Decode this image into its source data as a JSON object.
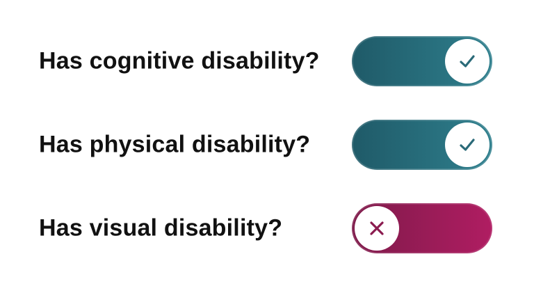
{
  "questions": [
    {
      "label": "Has cognitive disability?",
      "state": "on"
    },
    {
      "label": "Has physical disability?",
      "state": "on"
    },
    {
      "label": "Has visual disability?",
      "state": "off"
    }
  ],
  "colors": {
    "on_track_start": "#1f5a68",
    "on_track_end": "#2f7f8d",
    "off_track_start": "#7e1a4a",
    "off_track_end": "#b01d62",
    "check_icon": "#2a6a78",
    "x_icon": "#8b1b4f",
    "knob": "#ffffff",
    "text": "#111111"
  },
  "icons": {
    "on": "check-icon",
    "off": "close-icon"
  }
}
